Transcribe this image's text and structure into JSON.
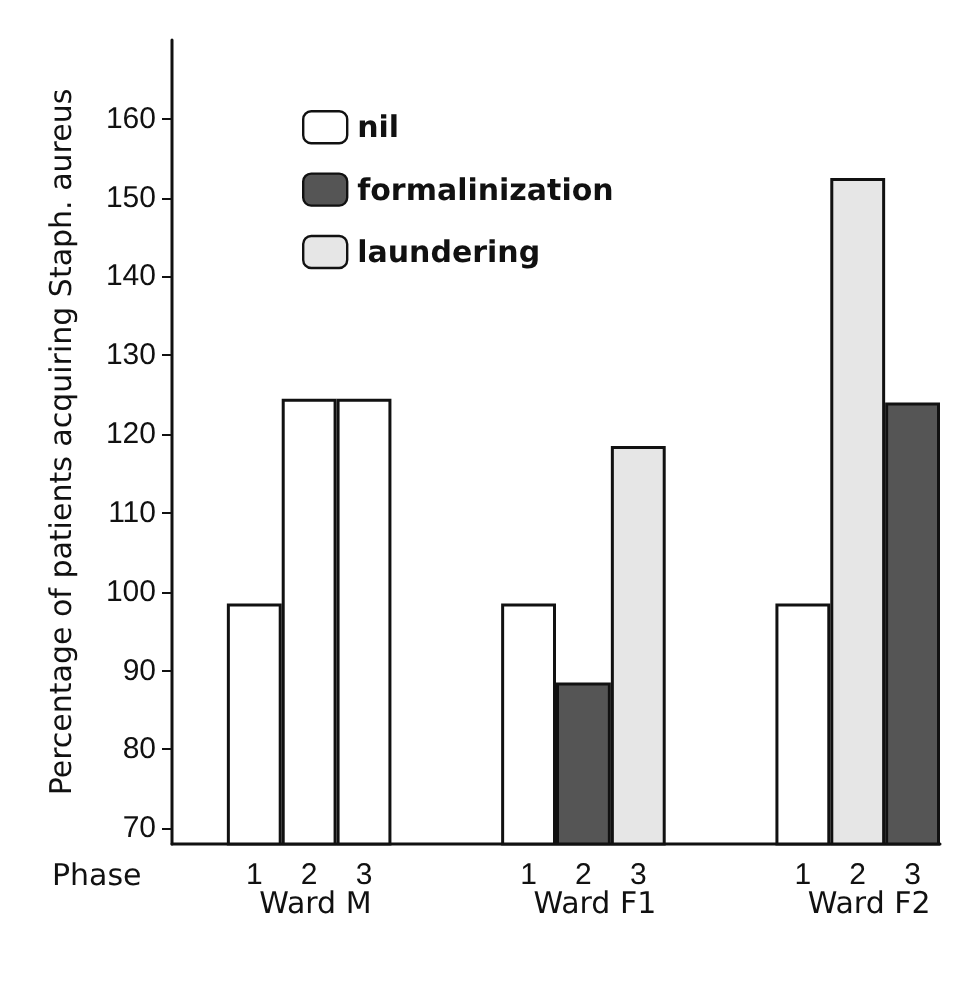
{
  "chart_data": {
    "type": "bar",
    "ylabel": "Percentage of patients acquiring Staph. aureus",
    "xlabel": "Phase",
    "categories": [
      null,
      "1",
      "2",
      "3",
      null,
      null,
      "1",
      "2",
      "3",
      null,
      null,
      "1",
      "2",
      "3"
    ],
    "stacked": true,
    "series": [
      {
        "name": "nil",
        "color": "#ffffff",
        "values": [
          null,
          98.5,
          124.5,
          124.5,
          null,
          null,
          98.5,
          null,
          null,
          null,
          null,
          98.5,
          null,
          null
        ]
      },
      {
        "name": "formalinization",
        "color": "#555555",
        "values": [
          null,
          null,
          null,
          null,
          null,
          null,
          null,
          88.5,
          null,
          null,
          null,
          null,
          null,
          124
        ]
      },
      {
        "name": "laundering",
        "color": "#e6e6e6",
        "values": [
          null,
          null,
          null,
          null,
          null,
          null,
          null,
          null,
          118.5,
          null,
          null,
          null,
          152.5,
          null
        ]
      }
    ],
    "annotations": [
      "Ward M",
      "Ward F1",
      "Ward F2"
    ],
    "ylim": [
      68,
      170
    ],
    "yticks": [
      70,
      80,
      90,
      100,
      110,
      120,
      130,
      140,
      150,
      160
    ],
    "grid": false,
    "legend": "top left"
  }
}
